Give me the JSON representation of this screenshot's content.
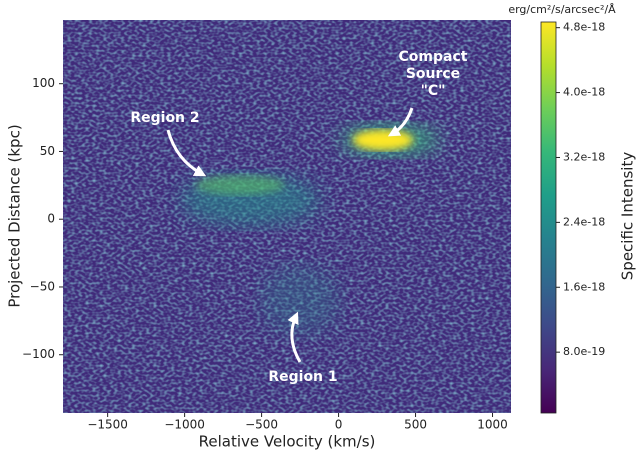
{
  "chart_data": {
    "type": "heatmap",
    "x_label": "Relative Velocity (km/s)",
    "y_label": "Projected Distance (kpc)",
    "xlim": [
      -1790,
      1120
    ],
    "xticks": [
      {
        "value": -1500,
        "label": "−1500"
      },
      {
        "value": -1000,
        "label": "−1000"
      },
      {
        "value": -500,
        "label": "−500"
      },
      0,
      500,
      1000
    ],
    "ylim": [
      -143,
      147
    ],
    "yticks": [
      {
        "value": -100,
        "label": "−100"
      },
      {
        "value": -50,
        "label": "−50"
      },
      0,
      50,
      100
    ],
    "colormap": "viridis",
    "colorbar_label": "Specific Intensity",
    "colorbar_units": "erg/cm²/s/arcsec²/Å",
    "clim": [
      5e-20,
      4.87e-18
    ],
    "cticks": [
      {
        "value": 8e-19,
        "label": "8.0e-19"
      },
      1.6e-18,
      2.4e-18,
      3.2e-18,
      {
        "value": 4e-18,
        "label": "4.0e-18"
      },
      4.8e-18
    ],
    "annotations": {
      "compact_source": [
        "Compact",
        "Source",
        "\"C\""
      ],
      "region_2": "Region 2",
      "region_1": "Region 1"
    }
  }
}
